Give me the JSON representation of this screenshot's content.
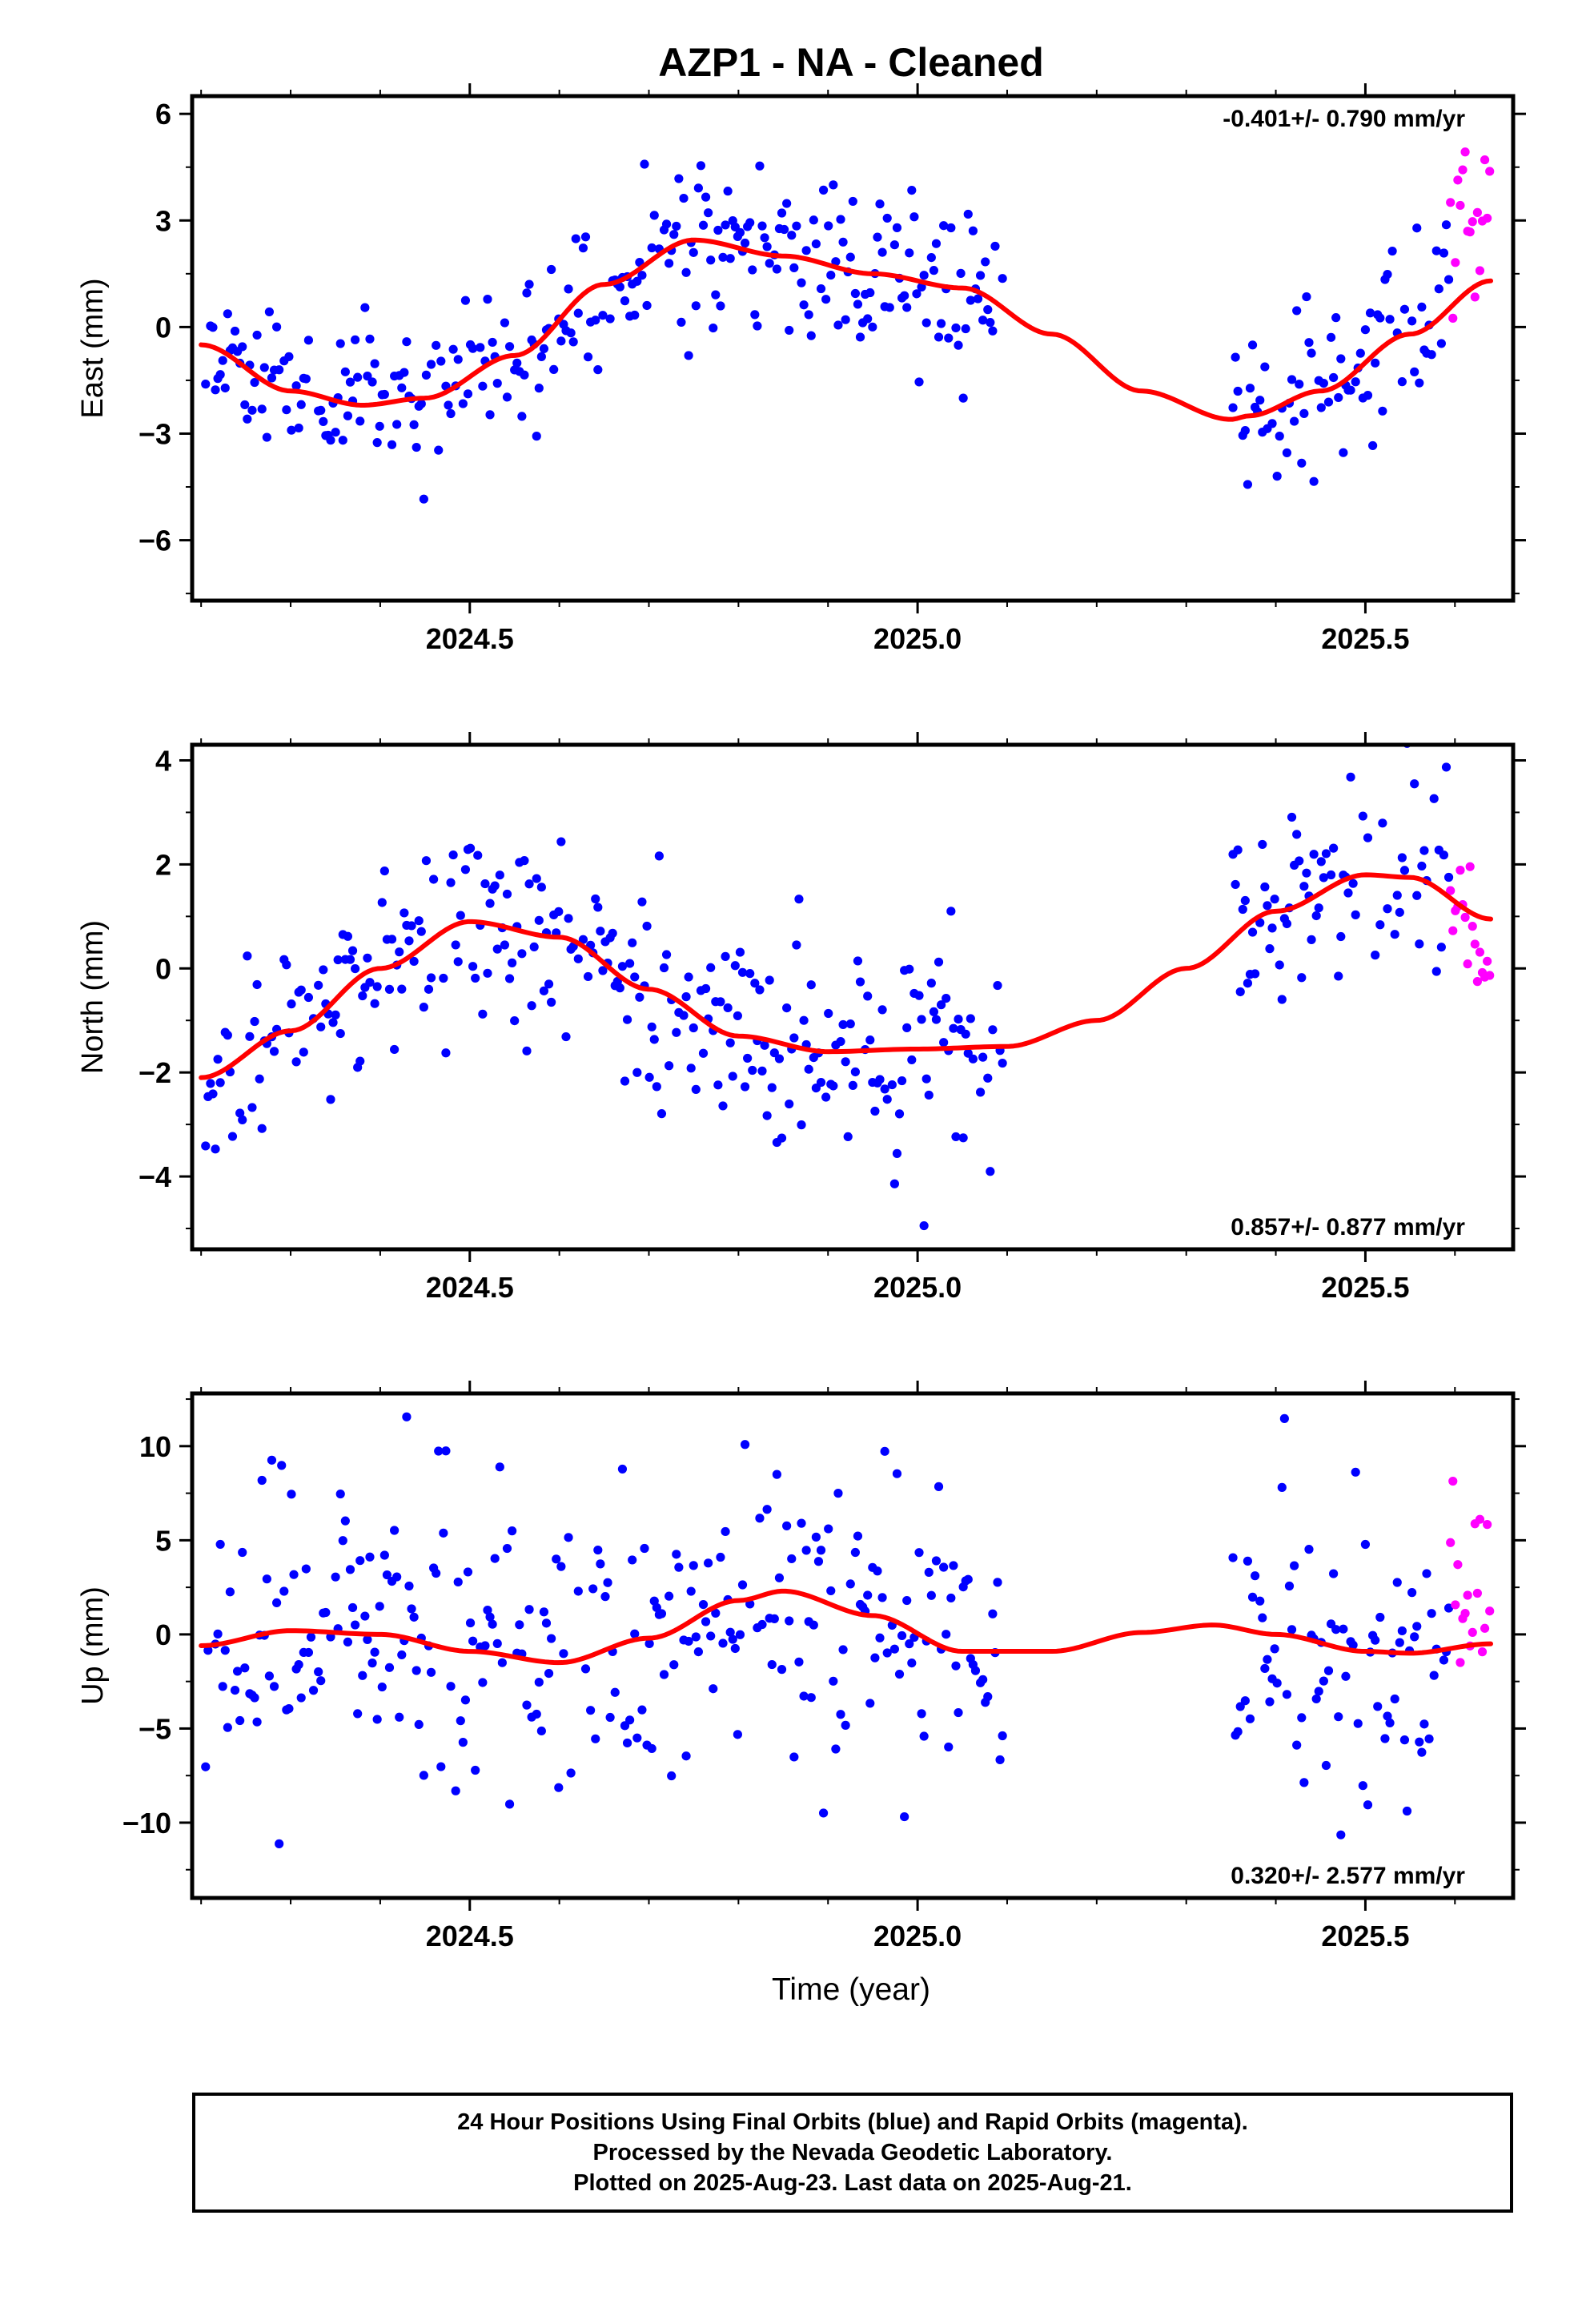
{
  "title": "AZP1  - NA - Cleaned",
  "xlabel": "Time (year)",
  "footer": [
    "24 Hour Positions Using Final Orbits (blue) and Rapid Orbits (magenta).",
    "Processed by the Nevada Geodetic Laboratory.",
    "Plotted on 2025-Aug-23. Last data on 2025-Aug-21."
  ],
  "colors": {
    "final": "#0000ff",
    "rapid": "#ff00ff",
    "fit": "#ff0000",
    "frame": "#000000"
  },
  "chart_data": [
    {
      "type": "scatter",
      "ylabel": "East (mm)",
      "rate_label": "-0.401+/- 0.790 mm/yr",
      "rate_position": "top-right",
      "xlim": [
        2024.19,
        2025.665
      ],
      "ylim": [
        -7.7,
        6.5
      ],
      "xticks": [
        2024.5,
        2025.0,
        2025.5
      ],
      "xtick_labels": [
        "2024.5",
        "2025.0",
        "2025.5"
      ],
      "yticks": [
        -6,
        -3,
        0,
        3,
        6
      ],
      "ytick_labels": [
        "−6",
        "−3",
        "0",
        "3",
        "6"
      ],
      "gaps": [
        [
          2025.095,
          2025.35
        ]
      ],
      "final_range": [
        2024.205,
        2025.595
      ],
      "rapid_range": [
        2025.595,
        2025.64
      ],
      "series": [
        {
          "name": "Final Orbits",
          "style": "points",
          "color": "blue",
          "model": "fit+noise",
          "scatter": 1.15,
          "seed": 11
        },
        {
          "name": "Rapid Orbits",
          "style": "points",
          "color": "magenta",
          "model": "fit+noise",
          "scatter": 1.4,
          "offset": 2.0,
          "seed": 21
        },
        {
          "name": "Model fit",
          "style": "line",
          "color": "red",
          "x": [
            2024.2,
            2024.3,
            2024.38,
            2024.45,
            2024.55,
            2024.65,
            2024.75,
            2024.85,
            2024.95,
            2025.05,
            2025.15,
            2025.25,
            2025.35,
            2025.37,
            2025.45,
            2025.55,
            2025.64
          ],
          "y": [
            -0.5,
            -1.8,
            -2.2,
            -2.0,
            -0.8,
            1.2,
            2.45,
            2.0,
            1.5,
            1.1,
            -0.2,
            -1.8,
            -2.6,
            -2.5,
            -1.8,
            -0.2,
            1.3
          ]
        }
      ]
    },
    {
      "type": "scatter",
      "ylabel": "North (mm)",
      "rate_label": "0.857+/- 0.877 mm/yr",
      "rate_position": "bottom-right",
      "xlim": [
        2024.19,
        2025.665
      ],
      "ylim": [
        -5.4,
        4.3
      ],
      "xticks": [
        2024.5,
        2025.0,
        2025.5
      ],
      "xtick_labels": [
        "2024.5",
        "2025.0",
        "2025.5"
      ],
      "yticks": [
        -4,
        -2,
        0,
        2,
        4
      ],
      "ytick_labels": [
        "−4",
        "−2",
        "0",
        "2",
        "4"
      ],
      "gaps": [
        [
          2025.095,
          2025.35
        ]
      ],
      "final_range": [
        2024.205,
        2025.595
      ],
      "rapid_range": [
        2025.595,
        2025.64
      ],
      "series": [
        {
          "name": "Final Orbits",
          "style": "points",
          "color": "blue",
          "model": "fit+noise",
          "scatter": 0.95,
          "seed": 33
        },
        {
          "name": "Rapid Orbits",
          "style": "points",
          "color": "magenta",
          "model": "fit+noise",
          "scatter": 0.9,
          "offset": -0.5,
          "seed": 43
        },
        {
          "name": "Model fit",
          "style": "line",
          "color": "red",
          "x": [
            2024.2,
            2024.3,
            2024.4,
            2024.5,
            2024.6,
            2024.7,
            2024.8,
            2024.9,
            2025.0,
            2025.1,
            2025.2,
            2025.3,
            2025.4,
            2025.5,
            2025.55,
            2025.64
          ],
          "y": [
            -2.1,
            -1.2,
            0.0,
            0.9,
            0.6,
            -0.4,
            -1.3,
            -1.6,
            -1.55,
            -1.5,
            -1.0,
            0.0,
            1.1,
            1.8,
            1.75,
            0.95
          ]
        }
      ]
    },
    {
      "type": "scatter",
      "ylabel": "Up (mm)",
      "rate_label": "0.320+/- 2.577 mm/yr",
      "rate_position": "bottom-right",
      "xlim": [
        2024.19,
        2025.665
      ],
      "ylim": [
        -14.0,
        12.8
      ],
      "xticks": [
        2024.5,
        2025.0,
        2025.5
      ],
      "xtick_labels": [
        "2024.5",
        "2025.0",
        "2025.5"
      ],
      "yticks": [
        -10,
        -5,
        0,
        5,
        10
      ],
      "ytick_labels": [
        "−10",
        "−5",
        "0",
        "5",
        "10"
      ],
      "gaps": [
        [
          2025.095,
          2025.35
        ]
      ],
      "final_range": [
        2024.205,
        2025.595
      ],
      "rapid_range": [
        2025.595,
        2025.64
      ],
      "series": [
        {
          "name": "Final Orbits",
          "style": "points",
          "color": "blue",
          "model": "fit+noise",
          "scatter": 4.0,
          "seed": 55
        },
        {
          "name": "Rapid Orbits",
          "style": "points",
          "color": "magenta",
          "model": "fit+noise",
          "scatter": 5.5,
          "offset": 1.5,
          "seed": 65
        },
        {
          "name": "Model fit",
          "style": "line",
          "color": "red",
          "x": [
            2024.2,
            2024.3,
            2024.4,
            2024.5,
            2024.6,
            2024.7,
            2024.8,
            2024.85,
            2024.95,
            2025.05,
            2025.15,
            2025.25,
            2025.33,
            2025.4,
            2025.5,
            2025.55,
            2025.64
          ],
          "y": [
            -0.6,
            0.2,
            0.0,
            -0.9,
            -1.5,
            -0.2,
            1.8,
            2.3,
            1.0,
            -0.9,
            -0.9,
            0.1,
            0.5,
            0.0,
            -0.9,
            -1.0,
            -0.5
          ]
        }
      ]
    }
  ]
}
